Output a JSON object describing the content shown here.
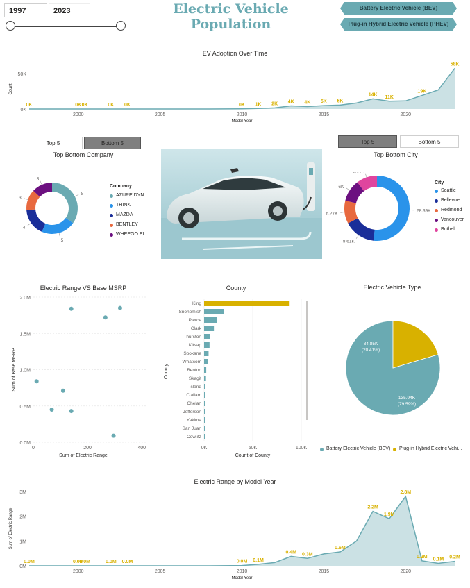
{
  "header": {
    "title": "Electric Vehicle Population",
    "year_start": "1997",
    "year_end": "2023",
    "slider": {
      "min_year": 1997,
      "max_year": 2023,
      "start": 1997,
      "end": 2023
    },
    "legend_buttons": [
      "Battery Electric Vehicle (BEV)",
      "Plug-in Hybrid Electric Vehicle (PHEV)"
    ]
  },
  "colors": {
    "teal": "#6aaab2",
    "gold": "#d8b100",
    "blue": "#2a93ea",
    "navy": "#1a2e99",
    "orange": "#e8693f",
    "purple": "#6c1080",
    "pink": "#e0459e",
    "gray_button": "#7f7f7f"
  },
  "company_toggle": {
    "top": "Top 5",
    "bottom": "Bottom 5",
    "active": "bottom"
  },
  "city_toggle": {
    "top": "Top 5",
    "bottom": "Bottom 5",
    "active": "top"
  },
  "company_legend": {
    "title": "Company",
    "items": [
      {
        "label": "AZURE DYN...",
        "color": "#6aaab2"
      },
      {
        "label": "THINK",
        "color": "#2a93ea"
      },
      {
        "label": "MAZDA",
        "color": "#1a2e99"
      },
      {
        "label": "BENTLEY",
        "color": "#e8693f"
      },
      {
        "label": "WHEEGO EL...",
        "color": "#6c1080"
      }
    ]
  },
  "city_legend": {
    "title": "City",
    "items": [
      {
        "label": "Seattle",
        "color": "#2a93ea"
      },
      {
        "label": "Bellevue",
        "color": "#1a2e99"
      },
      {
        "label": "Redmond",
        "color": "#e8693f"
      },
      {
        "label": "Vancouver",
        "color": "#6c1080"
      },
      {
        "label": "Bothell",
        "color": "#e0459e"
      }
    ]
  },
  "ev_type_legend": [
    "Battery Electric Vehicle (BEV)",
    "Plug-in Hybrid Electric Vehi..."
  ],
  "image": {
    "icon": "electric-car-photo"
  },
  "chart_data": [
    {
      "id": "adoption",
      "type": "area",
      "title": "EV Adoption Over Time",
      "xlabel": "Model Year",
      "ylabel": "Count",
      "xlim": [
        1997,
        2023
      ],
      "ylim": [
        0,
        56000
      ],
      "y_ticks": [
        {
          "v": 0,
          "label": "0K"
        },
        {
          "v": 50000,
          "label": "50K"
        }
      ],
      "x_ticks": [
        "2000",
        "2005",
        "2010",
        "2015",
        "2020"
      ],
      "x": [
        1997,
        1998,
        1999,
        2000,
        2002,
        2003,
        2008,
        2010,
        2011,
        2012,
        2013,
        2014,
        2015,
        2016,
        2017,
        2018,
        2019,
        2020,
        2021,
        2022,
        2023
      ],
      "values": [
        0,
        0,
        0,
        0,
        0,
        0,
        0,
        200,
        700,
        1600,
        4400,
        3500,
        4800,
        5500,
        8500,
        14300,
        11000,
        11500,
        19100,
        27000,
        57500
      ],
      "data_labels": [
        {
          "x": 1997,
          "label": "0K"
        },
        {
          "x": 2000,
          "label": "0K"
        },
        {
          "x": 2000.4,
          "label": "0K"
        },
        {
          "x": 2002,
          "label": "0K"
        },
        {
          "x": 2003,
          "label": "0K"
        },
        {
          "x": 2010,
          "label": "0K"
        },
        {
          "x": 2011,
          "label": "1K"
        },
        {
          "x": 2012,
          "label": "2K"
        },
        {
          "x": 2013,
          "label": "4K"
        },
        {
          "x": 2014,
          "label": "4K"
        },
        {
          "x": 2015,
          "label": "5K"
        },
        {
          "x": 2016,
          "label": "5K"
        },
        {
          "x": 2018,
          "label": "14K"
        },
        {
          "x": 2019,
          "label": "11K"
        },
        {
          "x": 2021,
          "label": "19K"
        },
        {
          "x": 2023,
          "label": "58K"
        }
      ]
    },
    {
      "id": "company",
      "type": "pie",
      "title": "Top Bottom Company",
      "categories": [
        "AZURE DYN...",
        "THINK",
        "MAZDA",
        "BENTLEY",
        "WHEEGO EL..."
      ],
      "values": [
        8,
        5,
        4,
        3,
        3
      ],
      "value_labels": [
        "8",
        "5",
        "4",
        "3",
        "3"
      ]
    },
    {
      "id": "city",
      "type": "pie",
      "title": "Top Bottom City",
      "categories": [
        "Seattle",
        "Bellevue",
        "Redmond",
        "Vancouver",
        "Bothell"
      ],
      "values": [
        28.39,
        8.61,
        6.27,
        6.0,
        5.64
      ],
      "value_labels": [
        "28.39K",
        "8.61K",
        "6.27K",
        "6K",
        "5.64K"
      ]
    },
    {
      "id": "range-msrp",
      "type": "scatter",
      "title": "Electric Range VS Base MSRP",
      "xlabel": "Sum of Electric Range",
      "ylabel": "Sum of Base MSRP",
      "xlim": [
        0,
        420
      ],
      "ylim": [
        0,
        2000000
      ],
      "x_ticks": [
        {
          "v": 0,
          "label": "0"
        },
        {
          "v": 200,
          "label": "200"
        },
        {
          "v": 400,
          "label": "400"
        }
      ],
      "y_ticks": [
        {
          "v": 0,
          "label": "0.0M"
        },
        {
          "v": 500000,
          "label": "0.5M"
        },
        {
          "v": 1000000,
          "label": "1.0M"
        },
        {
          "v": 1500000,
          "label": "1.5M"
        },
        {
          "v": 2000000,
          "label": "2.0M"
        }
      ],
      "points": [
        [
          12,
          840000
        ],
        [
          68,
          450000
        ],
        [
          110,
          710000
        ],
        [
          140,
          430000
        ],
        [
          140,
          1840000
        ],
        [
          266,
          1720000
        ],
        [
          296,
          90000
        ],
        [
          320,
          1850000
        ]
      ]
    },
    {
      "id": "county",
      "type": "bar",
      "title": "County",
      "xlabel": "Count of County",
      "ylabel": "County",
      "xlim": [
        0,
        100000
      ],
      "x_ticks": [
        {
          "v": 0,
          "label": "0K"
        },
        {
          "v": 50000,
          "label": "50K"
        },
        {
          "v": 100000,
          "label": "100K"
        }
      ],
      "categories": [
        "King",
        "Snohomish",
        "Pierce",
        "Clark",
        "Thurston",
        "Kitsap",
        "Spokane",
        "Whatcom",
        "Benton",
        "Skagit",
        "Island",
        "Clallam",
        "Chelan",
        "Jefferson",
        "Yakima",
        "San Juan",
        "Cowlitz"
      ],
      "values": [
        88000,
        20300,
        13200,
        10100,
        6200,
        5600,
        4600,
        4100,
        2200,
        1900,
        1000,
        600,
        500,
        450,
        400,
        350,
        300
      ]
    },
    {
      "id": "ev-type",
      "type": "pie",
      "title": "Electric Vehicle Type",
      "categories": [
        "Battery Electric Vehicle (BEV)",
        "Plug-in Hybrid Electric Vehicle (PHEV)"
      ],
      "values": [
        135.94,
        34.85
      ],
      "value_labels": [
        [
          "135.94K",
          "(79.59%)"
        ],
        [
          "34.85K",
          "(20.41%)"
        ]
      ]
    },
    {
      "id": "range-year",
      "type": "area",
      "title": "Electric Range by Model Year",
      "xlabel": "Model Year",
      "ylabel": "Sum of Electric Range",
      "xlim": [
        1997,
        2023
      ],
      "ylim": [
        0,
        3000000
      ],
      "y_ticks": [
        {
          "v": 0,
          "label": "0M"
        },
        {
          "v": 1000000,
          "label": "1M"
        },
        {
          "v": 2000000,
          "label": "2M"
        },
        {
          "v": 3000000,
          "label": "3M"
        }
      ],
      "x_ticks": [
        "2000",
        "2005",
        "2010",
        "2015",
        "2020"
      ],
      "x": [
        1997,
        1998,
        1999,
        2000,
        2002,
        2003,
        2008,
        2010,
        2011,
        2012,
        2013,
        2014,
        2015,
        2016,
        2017,
        2018,
        2019,
        2020,
        2021,
        2022,
        2023
      ],
      "values": [
        0,
        0,
        0,
        0,
        0,
        0,
        0,
        10000,
        60000,
        130000,
        380000,
        300000,
        480000,
        560000,
        1000000,
        2200000,
        1900000,
        2800000,
        200000,
        100000,
        180000
      ],
      "data_labels": [
        {
          "x": 1997,
          "label": "0.0M"
        },
        {
          "x": 2000,
          "label": "0.0M"
        },
        {
          "x": 2000.4,
          "label": "0.0M"
        },
        {
          "x": 2002,
          "label": "0.0M"
        },
        {
          "x": 2003,
          "label": "0.0M"
        },
        {
          "x": 2010,
          "label": "0.0M"
        },
        {
          "x": 2011,
          "label": "0.1M"
        },
        {
          "x": 2013,
          "label": "0.4M"
        },
        {
          "x": 2014,
          "label": "0.3M"
        },
        {
          "x": 2016,
          "label": "0.6M"
        },
        {
          "x": 2018,
          "label": "2.2M"
        },
        {
          "x": 2019,
          "label": "1.9M"
        },
        {
          "x": 2020,
          "label": "2.8M"
        },
        {
          "x": 2021,
          "label": "0.2M"
        },
        {
          "x": 2022,
          "label": "0.1M"
        },
        {
          "x": 2023,
          "label": "0.2M"
        }
      ]
    }
  ]
}
